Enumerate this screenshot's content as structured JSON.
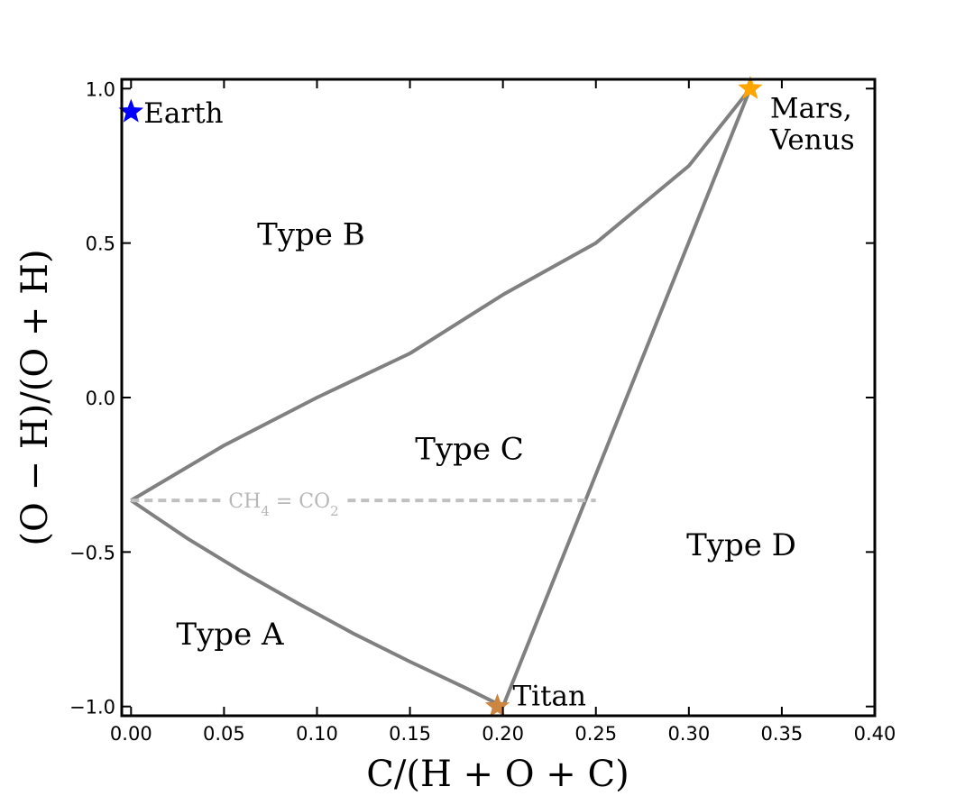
{
  "chart_data": {
    "type": "line",
    "xlabel": "C/(H + O + C)",
    "ylabel": "(O − H)/(O + H)",
    "xlim": [
      -0.005,
      0.4
    ],
    "ylim": [
      -1.03,
      1.03
    ],
    "x_ticks": [
      0.0,
      0.05,
      0.1,
      0.15,
      0.2,
      0.25,
      0.3,
      0.35,
      0.4
    ],
    "x_tick_labels": [
      "0.00",
      "0.05",
      "0.10",
      "0.15",
      "0.20",
      "0.25",
      "0.30",
      "0.35",
      "0.40"
    ],
    "y_ticks": [
      1.0,
      0.5,
      0.0,
      -0.5,
      -1.0
    ],
    "y_tick_labels": [
      "1.0",
      "0.5",
      "0.0",
      "−0.5",
      "−1.0"
    ],
    "grid": false,
    "colors": {
      "boundary": "#808080",
      "reference": "#c0c0c0",
      "earth": "#0000ff",
      "mars_venus": "#ffa500",
      "titan": "#cd853f"
    },
    "series": [
      {
        "kind": "boundary-ab",
        "x": [
          0.0,
          0.03,
          0.06,
          0.09,
          0.12,
          0.15,
          0.18,
          0.2
        ],
        "y": [
          -0.333,
          -0.455,
          -0.565,
          -0.667,
          -0.765,
          -0.855,
          -0.94,
          -1.0
        ]
      },
      {
        "kind": "boundary-bc",
        "x": [
          0.0,
          0.05,
          0.1,
          0.15,
          0.2,
          0.25,
          0.3,
          0.333
        ],
        "y": [
          -0.333,
          -0.155,
          0.0,
          0.143,
          0.333,
          0.5,
          0.75,
          1.0
        ]
      },
      {
        "kind": "boundary-cd",
        "x": [
          0.2,
          0.333
        ],
        "y": [
          -1.0,
          1.0
        ]
      },
      {
        "kind": "reference-ch4-co2",
        "x": [
          0.0,
          0.25
        ],
        "y": [
          -0.333,
          -0.333
        ]
      }
    ],
    "reference_label": "CH4 = CO2",
    "regions": [
      {
        "label": "Type A",
        "x": 0.0532,
        "y": -0.765
      },
      {
        "label": "Type B",
        "x": 0.0968,
        "y": 0.53
      },
      {
        "label": "Type C",
        "x": 0.182,
        "y": -0.165
      },
      {
        "label": "Type D",
        "x": 0.3282,
        "y": -0.475
      }
    ],
    "points": [
      {
        "label": "Earth",
        "x": 0.0,
        "y": 0.925,
        "color": "#0000ff"
      },
      {
        "label_lines": [
          "Mars,",
          "Venus"
        ],
        "x": 0.333,
        "y": 1.0,
        "color": "#ffa500"
      },
      {
        "label": "Titan",
        "x": 0.197,
        "y": -1.0,
        "color": "#cd853f"
      }
    ]
  }
}
